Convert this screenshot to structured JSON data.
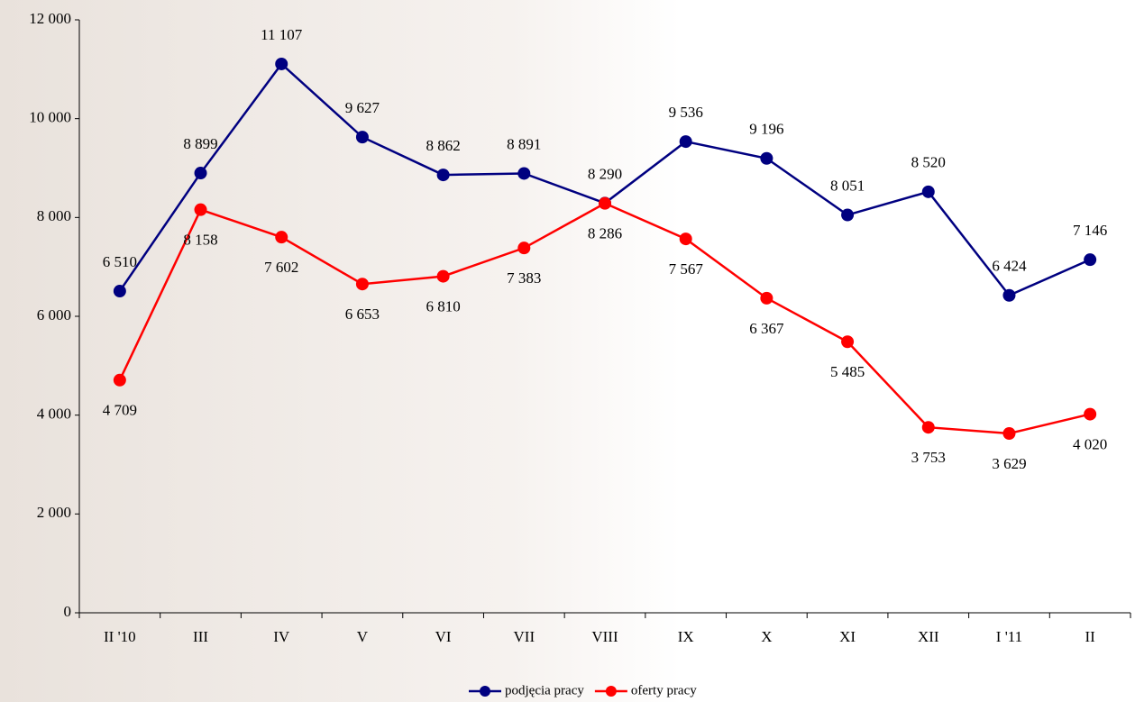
{
  "chart_data": {
    "type": "line",
    "categories": [
      "II '10",
      "III",
      "IV",
      "V",
      "VI",
      "VII",
      "VIII",
      "IX",
      "X",
      "XI",
      "XII",
      "I '11",
      "II"
    ],
    "series": [
      {
        "name": "podjęcia pracy",
        "color": "#000080",
        "values": [
          6510,
          8899,
          11107,
          9627,
          8862,
          8891,
          8290,
          9536,
          9196,
          8051,
          8520,
          6424,
          7146
        ],
        "value_labels": [
          "6 510",
          "8 899",
          "11 107",
          "9 627",
          "8 862",
          "8 891",
          "8 290",
          "9 536",
          "9 196",
          "8 051",
          "8 520",
          "6 424",
          "7 146"
        ]
      },
      {
        "name": "oferty pracy",
        "color": "#ff0000",
        "values": [
          4709,
          8158,
          7602,
          6653,
          6810,
          7383,
          8286,
          7567,
          6367,
          5485,
          3753,
          3629,
          4020
        ],
        "value_labels": [
          "4 709",
          "8 158",
          "7 602",
          "6 653",
          "6 810",
          "7 383",
          "8 286",
          "7 567",
          "6 367",
          "5 485",
          "3 753",
          "3 629",
          "4 020"
        ]
      }
    ],
    "ylim": [
      0,
      12000
    ],
    "yticks": [
      0,
      {
        "value": 2000,
        "label": "2 000"
      },
      {
        "value": 4000,
        "label": "4 000"
      },
      {
        "value": 6000,
        "label": "6 000"
      },
      {
        "value": 8000,
        "label": "8 000"
      },
      {
        "value": 10000,
        "label": "10 000"
      },
      {
        "value": 12000,
        "label": "12 000"
      }
    ],
    "grid": false,
    "legend": "bottom"
  }
}
